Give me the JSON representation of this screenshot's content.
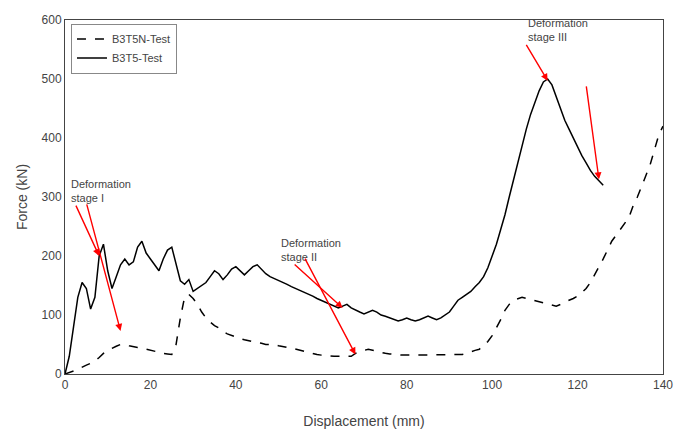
{
  "chart_data": {
    "type": "line",
    "xlabel": "Displacement (mm)",
    "ylabel": "Force (kN)",
    "xlim": [
      0,
      140
    ],
    "ylim": [
      0,
      600
    ],
    "xticks": [
      0,
      20,
      40,
      60,
      80,
      100,
      120,
      140
    ],
    "yticks": [
      0,
      100,
      200,
      300,
      400,
      500,
      600
    ],
    "grid": false,
    "legend": "upper left",
    "annotations": [
      "Deformation\nstage I",
      "Deformation\nstage II",
      "Deformation\nstage III"
    ],
    "series": [
      {
        "name": "B3T5-Test",
        "color": "black",
        "line_style": "solid",
        "x": [
          0,
          1,
          2,
          3,
          4,
          5,
          6,
          7,
          8,
          9,
          10,
          11,
          12,
          13,
          14,
          15,
          16,
          17,
          18,
          19,
          20,
          21,
          22,
          23,
          24,
          25,
          26,
          27,
          28,
          29,
          30,
          31,
          32,
          33,
          34,
          35,
          36,
          37,
          38,
          39,
          40,
          41,
          42,
          43,
          44,
          45,
          46,
          47,
          48,
          49,
          50,
          51,
          52,
          53,
          54,
          55,
          56,
          57,
          58,
          59,
          60,
          61,
          62,
          63,
          64,
          65,
          66,
          67,
          68,
          69,
          70,
          71,
          72,
          73,
          74,
          75,
          76,
          77,
          78,
          79,
          80,
          81,
          82,
          83,
          84,
          85,
          86,
          87,
          88,
          89,
          90,
          91,
          92,
          93,
          94,
          95,
          96,
          97,
          98,
          99,
          100,
          101,
          102,
          103,
          104,
          105,
          106,
          107,
          108,
          109,
          110,
          111,
          112,
          113,
          114,
          115,
          116,
          117,
          118,
          119,
          120,
          121,
          122,
          123,
          124,
          125,
          126
        ],
        "values": [
          0,
          30,
          80,
          130,
          155,
          145,
          110,
          130,
          200,
          220,
          175,
          145,
          165,
          185,
          195,
          185,
          190,
          215,
          225,
          205,
          195,
          185,
          175,
          195,
          210,
          215,
          185,
          158,
          152,
          160,
          140,
          145,
          150,
          155,
          165,
          175,
          170,
          160,
          168,
          178,
          182,
          175,
          168,
          175,
          182,
          185,
          178,
          170,
          165,
          162,
          158,
          155,
          152,
          148,
          145,
          142,
          138,
          135,
          132,
          128,
          125,
          122,
          118,
          115,
          112,
          115,
          118,
          112,
          108,
          105,
          102,
          105,
          108,
          105,
          100,
          98,
          95,
          92,
          90,
          92,
          95,
          92,
          90,
          92,
          95,
          98,
          95,
          92,
          95,
          100,
          105,
          115,
          125,
          130,
          135,
          140,
          148,
          155,
          165,
          180,
          200,
          220,
          245,
          270,
          300,
          330,
          360,
          390,
          415,
          440,
          460,
          480,
          495,
          500,
          490,
          470,
          448,
          430,
          415,
          400,
          385,
          370,
          358,
          345,
          335,
          328,
          320
        ]
      },
      {
        "name": "B3T5N-Test",
        "color": "black",
        "line_style": "dashed",
        "x": [
          0,
          1,
          2,
          3,
          4,
          5,
          6,
          7,
          8,
          9,
          10,
          11,
          12,
          13,
          14,
          15,
          16,
          17,
          18,
          19,
          20,
          21,
          22,
          23,
          24,
          25,
          26,
          27,
          28,
          29,
          30,
          31,
          32,
          33,
          34,
          35,
          36,
          37,
          38,
          39,
          40,
          41,
          42,
          43,
          44,
          45,
          46,
          47,
          48,
          49,
          50,
          51,
          52,
          53,
          54,
          55,
          56,
          57,
          58,
          59,
          60,
          61,
          62,
          63,
          64,
          65,
          66,
          67,
          68,
          69,
          70,
          71,
          72,
          73,
          74,
          75,
          76,
          77,
          78,
          79,
          80,
          81,
          82,
          83,
          84,
          85,
          86,
          87,
          88,
          89,
          90,
          91,
          92,
          93,
          94,
          95,
          96,
          97,
          98,
          99,
          100,
          101,
          102,
          103,
          104,
          105,
          106,
          107,
          108,
          109,
          110,
          111,
          112,
          113,
          114,
          115,
          116,
          117,
          118,
          119,
          120,
          121,
          122,
          123,
          124,
          125,
          126,
          127,
          128,
          129,
          130,
          131,
          132,
          133,
          134,
          135,
          136,
          137,
          138,
          139,
          140
        ],
        "values": [
          0,
          2,
          5,
          8,
          12,
          15,
          18,
          22,
          28,
          35,
          40,
          44,
          47,
          50,
          50,
          48,
          46,
          45,
          44,
          42,
          40,
          38,
          36,
          35,
          34,
          33,
          50,
          95,
          130,
          135,
          128,
          118,
          105,
          95,
          88,
          82,
          78,
          72,
          68,
          65,
          62,
          60,
          58,
          56,
          55,
          53,
          52,
          50,
          50,
          50,
          48,
          46,
          45,
          44,
          42,
          40,
          38,
          36,
          34,
          33,
          32,
          31,
          30,
          30,
          30,
          30,
          30,
          30,
          35,
          38,
          40,
          42,
          40,
          38,
          36,
          35,
          34,
          33,
          32,
          32,
          32,
          32,
          32,
          32,
          32,
          32,
          32,
          32,
          32,
          32,
          32,
          32,
          32,
          33,
          35,
          38,
          40,
          42,
          48,
          55,
          65,
          78,
          92,
          108,
          118,
          125,
          128,
          130,
          128,
          126,
          124,
          122,
          120,
          118,
          116,
          115,
          118,
          122,
          125,
          128,
          132,
          138,
          145,
          155,
          168,
          180,
          195,
          210,
          225,
          235,
          245,
          255,
          265,
          285,
          300,
          318,
          335,
          355,
          380,
          405,
          420
        ]
      }
    ]
  }
}
